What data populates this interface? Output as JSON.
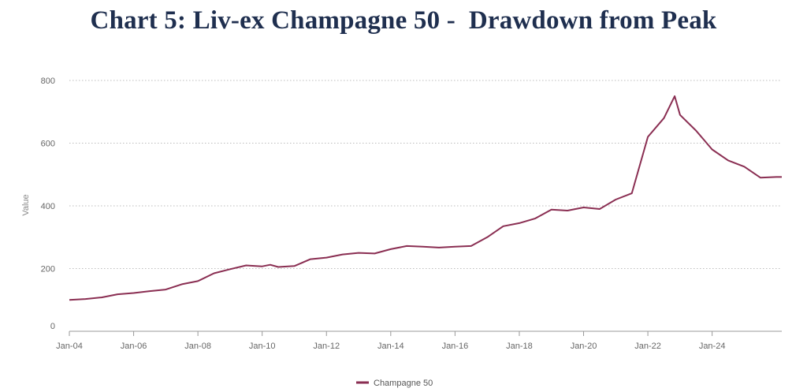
{
  "chart_data": {
    "type": "line",
    "title": "Chart 5: Liv-ex Champagne 50 -  Drawdown from Peak",
    "xlabel": "",
    "ylabel": "Value",
    "ylim": [
      0,
      800
    ],
    "yticks": [
      0,
      200,
      400,
      600,
      800
    ],
    "xlim": [
      "2004-01",
      "2026-03"
    ],
    "xticks": [
      "Jan-04",
      "Jan-06",
      "Jan-08",
      "Jan-10",
      "Jan-12",
      "Jan-14",
      "Jan-16",
      "Jan-18",
      "Jan-20",
      "Jan-22",
      "Jan-24"
    ],
    "grid": "horizontal-dotted",
    "legend": "bottom-center",
    "series": [
      {
        "name": "Champagne 50",
        "color": "#8a2e52",
        "points": [
          [
            "2004-01",
            100
          ],
          [
            "2004-07",
            103
          ],
          [
            "2005-01",
            108
          ],
          [
            "2005-07",
            118
          ],
          [
            "2006-01",
            122
          ],
          [
            "2006-07",
            128
          ],
          [
            "2007-01",
            133
          ],
          [
            "2007-07",
            150
          ],
          [
            "2008-01",
            160
          ],
          [
            "2008-07",
            185
          ],
          [
            "2009-01",
            198
          ],
          [
            "2009-07",
            210
          ],
          [
            "2010-01",
            207
          ],
          [
            "2010-04",
            212
          ],
          [
            "2010-07",
            205
          ],
          [
            "2011-01",
            208
          ],
          [
            "2011-07",
            230
          ],
          [
            "2012-01",
            235
          ],
          [
            "2012-07",
            245
          ],
          [
            "2013-01",
            250
          ],
          [
            "2013-07",
            248
          ],
          [
            "2014-01",
            262
          ],
          [
            "2014-07",
            272
          ],
          [
            "2015-01",
            270
          ],
          [
            "2015-07",
            267
          ],
          [
            "2016-01",
            270
          ],
          [
            "2016-07",
            272
          ],
          [
            "2017-01",
            300
          ],
          [
            "2017-07",
            335
          ],
          [
            "2018-01",
            345
          ],
          [
            "2018-07",
            360
          ],
          [
            "2019-01",
            388
          ],
          [
            "2019-07",
            385
          ],
          [
            "2020-01",
            395
          ],
          [
            "2020-07",
            390
          ],
          [
            "2021-01",
            420
          ],
          [
            "2021-07",
            440
          ],
          [
            "2022-01",
            620
          ],
          [
            "2022-07",
            680
          ],
          [
            "2022-11",
            750
          ],
          [
            "2023-01",
            690
          ],
          [
            "2023-07",
            640
          ],
          [
            "2024-01",
            580
          ],
          [
            "2024-07",
            545
          ],
          [
            "2025-01",
            525
          ],
          [
            "2025-07",
            490
          ],
          [
            "2026-01",
            492
          ],
          [
            "2026-03",
            492
          ]
        ]
      }
    ]
  }
}
